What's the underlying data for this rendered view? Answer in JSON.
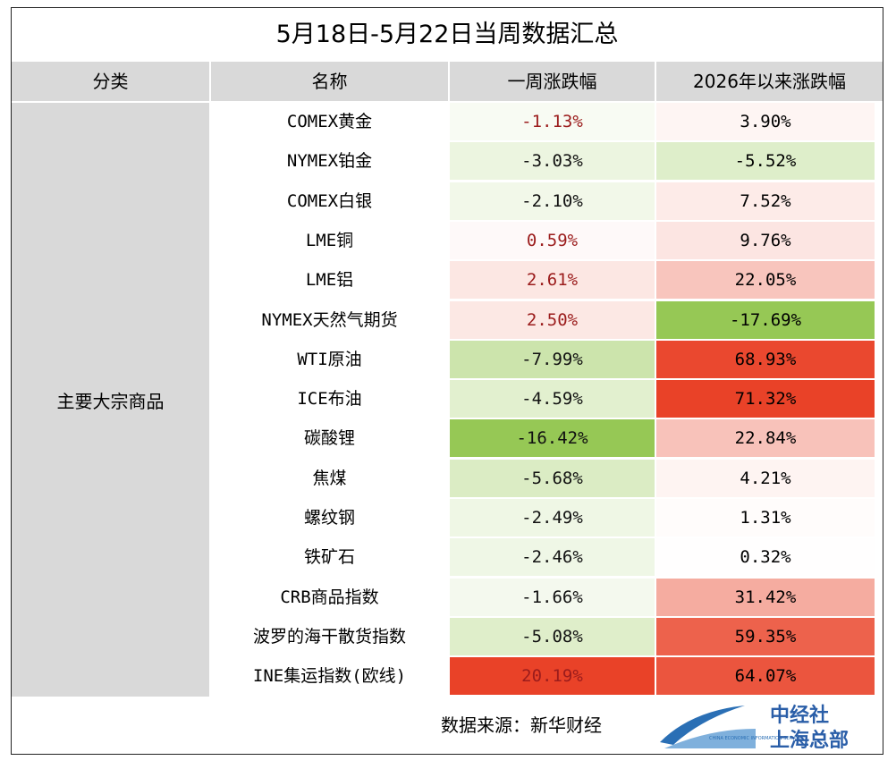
{
  "title": "5月18日-5月22日当周数据汇总",
  "table": {
    "header": [
      "分类",
      "名称",
      "一周涨跌幅",
      "2026年以来涨跌幅"
    ],
    "category": "主要大宗商品",
    "rows": [
      {
        "name": "COMEX黄金",
        "week": "-1.13%",
        "ytd": "3.90%",
        "week_color": "#9b1c1c"
      },
      {
        "name": "NYMEX铂金",
        "week": "-3.03%",
        "ytd": "-5.52%"
      },
      {
        "name": "COMEX白银",
        "week": "-2.10%",
        "ytd": "7.52%"
      },
      {
        "name": "LME铜",
        "week": "0.59%",
        "ytd": "9.76%",
        "week_color": "#9b1c1c"
      },
      {
        "name": "LME铝",
        "week": "2.61%",
        "ytd": "22.05%",
        "week_color": "#9b1c1c"
      },
      {
        "name": "NYMEX天然气期货",
        "week": "2.50%",
        "ytd": "-17.69%",
        "week_color": "#9b1c1c"
      },
      {
        "name": "WTI原油",
        "week": "-7.99%",
        "ytd": "68.93%"
      },
      {
        "name": "ICE布油",
        "week": "-4.59%",
        "ytd": "71.32%"
      },
      {
        "name": "碳酸锂",
        "week": "-16.42%",
        "ytd": "22.84%"
      },
      {
        "name": "焦煤",
        "week": "-5.68%",
        "ytd": "4.21%"
      },
      {
        "name": "螺纹钢",
        "week": "-2.49%",
        "ytd": "1.31%"
      },
      {
        "name": "铁矿石",
        "week": "-2.46%",
        "ytd": "0.32%"
      },
      {
        "name": "CRB商品指数",
        "week": "-1.66%",
        "ytd": "31.42%"
      },
      {
        "name": "波罗的海干散货指数",
        "week": "-5.08%",
        "ytd": "59.35%"
      },
      {
        "name": "INE集运指数(欧线)",
        "week": "20.19%",
        "ytd": "64.07%",
        "week_color": "#9b1c1c"
      }
    ]
  },
  "footer": {
    "source": "数据来源：新华财经",
    "logo_en": "CHINA ECONOMIC INFORMATION SERVICE",
    "logo_line1": "中经社",
    "logo_line2": "上海总部"
  }
}
